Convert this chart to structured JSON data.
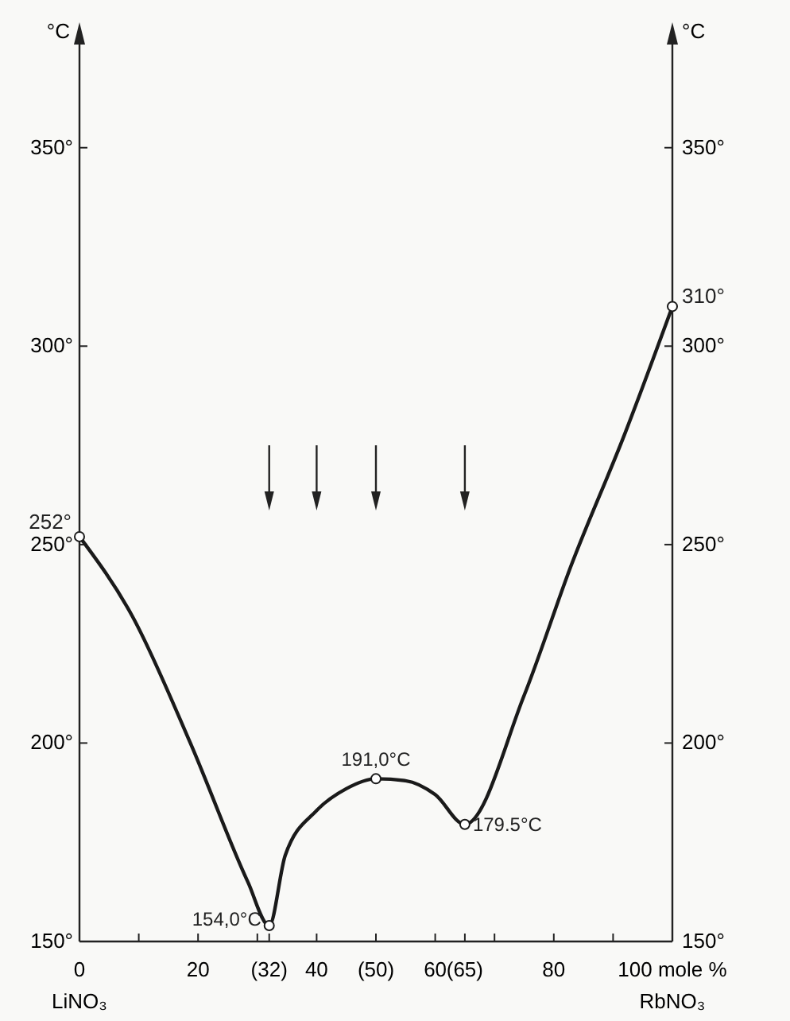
{
  "chart_data": {
    "type": "line",
    "xlim": [
      0,
      100
    ],
    "ylim": [
      150,
      380
    ],
    "y2lim": [
      150,
      380
    ],
    "xticks": [
      0,
      {
        "value": 10,
        "label": null
      },
      20,
      {
        "value": 30,
        "label": null
      },
      {
        "value": 32,
        "label": "(32)"
      },
      40,
      {
        "value": 50,
        "label": "(50)"
      },
      60,
      {
        "value": 65,
        "label": "(65)"
      },
      {
        "value": 70,
        "label": null
      },
      80,
      {
        "value": 90,
        "label": null
      },
      {
        "value": 100,
        "label": "100 mole %"
      }
    ],
    "yticks": [
      {
        "value": 150,
        "label": "150°"
      },
      {
        "value": 200,
        "label": "200°"
      },
      {
        "value": 250,
        "label": "250°"
      },
      {
        "value": 300,
        "label": "300°"
      },
      {
        "value": 350,
        "label": "350°"
      }
    ],
    "y2ticks": [
      {
        "value": 150,
        "label": "150°"
      },
      {
        "value": 200,
        "label": "200°"
      },
      {
        "value": 250,
        "label": "250°"
      },
      {
        "value": 300,
        "label": "300°"
      },
      {
        "value": 350,
        "label": "350°"
      }
    ],
    "ylabel": "°C",
    "y2label": "°C",
    "grid": false,
    "annotations": [
      "LiNO₃",
      "RbNO₃"
    ],
    "series": [
      {
        "type": "line",
        "color": "#1a1a1a",
        "marker": "none",
        "line_style": "solid",
        "x": [
          0,
          8.9,
          18.7,
          28.4,
          32,
          34.7,
          40,
          45,
          50,
          55,
          60,
          65,
          75,
          83,
          92,
          100
        ],
        "values": [
          252,
          232,
          200,
          165,
          154,
          171.7,
          183,
          188.5,
          191,
          190.5,
          187,
          179.5,
          212,
          245,
          278,
          310
        ]
      },
      {
        "type": "scatter",
        "color": "#1a1a1a",
        "marker": "circle",
        "x": [
          0,
          32,
          50,
          65,
          100
        ],
        "values": [
          252,
          154,
          191,
          179.5,
          310
        ],
        "value_labels": [
          "252°",
          "154,0°C",
          "191,0°C",
          "179.5°C",
          "310°"
        ]
      }
    ]
  }
}
